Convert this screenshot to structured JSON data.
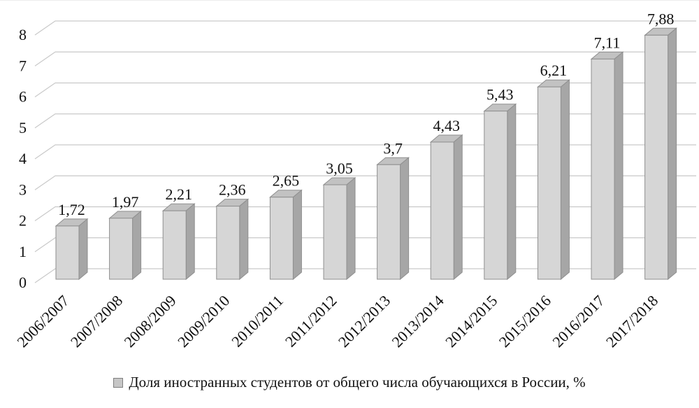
{
  "chart_data": {
    "type": "bar",
    "style": "3d-column",
    "title": "",
    "xlabel": "",
    "ylabel": "",
    "categories": [
      "2006/2007",
      "2007/2008",
      "2008/2009",
      "2009/2010",
      "2010/2011",
      "2011/2012",
      "2012/2013",
      "2013/2014",
      "2014/2015",
      "2015/2016",
      "2016/2017",
      "2017/2018"
    ],
    "values": [
      1.72,
      1.97,
      2.21,
      2.36,
      2.65,
      3.05,
      3.7,
      4.43,
      5.43,
      6.21,
      7.11,
      7.88
    ],
    "value_labels": [
      "1,72",
      "1,97",
      "2,21",
      "2,36",
      "2,65",
      "3,05",
      "3,7",
      "4,43",
      "5,43",
      "6,21",
      "7,11",
      "7,88"
    ],
    "ylim": [
      0,
      8
    ],
    "yticks": [
      0,
      1,
      2,
      3,
      4,
      5,
      6,
      7,
      8
    ],
    "grid": true,
    "legend_position": "bottom",
    "legend": "Доля иностранных студентов от общего числа обучающихся в России, %",
    "colors": {
      "bar_front": "#d6d6d6",
      "bar_top": "#c2c2c2",
      "bar_side": "#a6a6a6",
      "bar_outline": "#8f8f8f",
      "gridline": "#c9c9c9",
      "text": "#111111",
      "background": "#ffffff"
    }
  }
}
